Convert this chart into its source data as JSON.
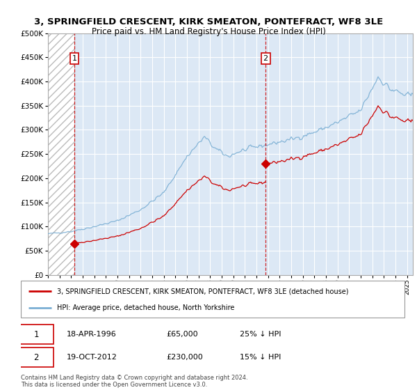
{
  "title": "3, SPRINGFIELD CRESCENT, KIRK SMEATON, PONTEFRACT, WF8 3LE",
  "subtitle": "Price paid vs. HM Land Registry's House Price Index (HPI)",
  "legend_line1": "3, SPRINGFIELD CRESCENT, KIRK SMEATON, PONTEFRACT, WF8 3LE (detached house)",
  "legend_line2": "HPI: Average price, detached house, North Yorkshire",
  "annotation1_date": "18-APR-1996",
  "annotation1_price": "£65,000",
  "annotation1_hpi": "25% ↓ HPI",
  "annotation2_date": "19-OCT-2012",
  "annotation2_price": "£230,000",
  "annotation2_hpi": "15% ↓ HPI",
  "footnote": "Contains HM Land Registry data © Crown copyright and database right 2024.\nThis data is licensed under the Open Government Licence v3.0.",
  "hpi_color": "#7bafd4",
  "sale_color": "#cc0000",
  "vline_color": "#cc0000",
  "background_plot": "#dce8f5",
  "ylim": [
    0,
    500000
  ],
  "yticks": [
    0,
    50000,
    100000,
    150000,
    200000,
    250000,
    300000,
    350000,
    400000,
    450000,
    500000
  ],
  "xlim_start": 1994.0,
  "xlim_end": 2025.5,
  "xticks": [
    1994,
    1995,
    1996,
    1997,
    1998,
    1999,
    2000,
    2001,
    2002,
    2003,
    2004,
    2005,
    2006,
    2007,
    2008,
    2009,
    2010,
    2011,
    2012,
    2013,
    2014,
    2015,
    2016,
    2017,
    2018,
    2019,
    2020,
    2021,
    2022,
    2023,
    2024,
    2025
  ],
  "sale1_x": 1996.29,
  "sale1_y": 65000,
  "sale2_x": 2012.79,
  "sale2_y": 230000
}
